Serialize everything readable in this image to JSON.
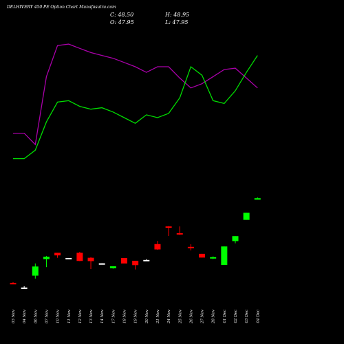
{
  "header": {
    "title": "DELHIVERY 450 PE Option Chart Munafasutra.com",
    "close": "C: 48.50",
    "high": "H: 48.95",
    "open": "O: 47.95",
    "low": "L: 47.95"
  },
  "colors": {
    "background": "#000000",
    "bullish": "#00ff00",
    "bearish": "#ff0000",
    "neutral": "#ffffff",
    "upper_line": "#00dd00",
    "lower_line": "#aa00aa",
    "text": "#ffffff"
  },
  "chart_data": {
    "type": "candlestick",
    "title": "DELHIVERY 450 PE Option Chart Munafasutra.com",
    "categories": [
      "03 Nov",
      "04 Nov",
      "06 Nov",
      "07 Nov",
      "10 Nov",
      "11 Nov",
      "12 Nov",
      "13 Nov",
      "14 Nov",
      "17 Nov",
      "18 Nov",
      "19 Nov",
      "20 Nov",
      "21 Nov",
      "24 Nov",
      "25 Nov",
      "26 Nov",
      "27 Nov",
      "28 Nov",
      "01 Dec",
      "02 Dec",
      "03 Dec",
      "04 Dec"
    ],
    "ylim": [
      0,
      60
    ],
    "candles": [
      {
        "date": "03 Nov",
        "open": 5.8,
        "high": 6.2,
        "low": 5.4,
        "close": 5.4
      },
      {
        "date": "04 Nov",
        "open": 3.5,
        "high": 4.2,
        "low": 2.9,
        "close": 3.3
      },
      {
        "date": "06 Nov",
        "open": 9.5,
        "high": 15.6,
        "low": 8.0,
        "close": 14.1
      },
      {
        "date": "07 Nov",
        "open": 17.8,
        "high": 19.4,
        "low": 13.8,
        "close": 19.0
      },
      {
        "date": "10 Nov",
        "open": 21.0,
        "high": 21.0,
        "low": 18.5,
        "close": 19.7
      },
      {
        "date": "11 Nov",
        "open": 18.4,
        "high": 18.4,
        "low": 18.0,
        "close": 18.2
      },
      {
        "date": "12 Nov",
        "open": 21.0,
        "high": 21.5,
        "low": 16.8,
        "close": 16.9
      },
      {
        "date": "13 Nov",
        "open": 18.5,
        "high": 18.8,
        "low": 12.8,
        "close": 16.8
      },
      {
        "date": "14 Nov",
        "open": 15.7,
        "high": 15.7,
        "low": 15.4,
        "close": 15.5
      },
      {
        "date": "17 Nov",
        "open": 13.2,
        "high": 14.2,
        "low": 13.0,
        "close": 14.2
      },
      {
        "date": "18 Nov",
        "open": 18.4,
        "high": 18.4,
        "low": 15.6,
        "close": 15.6
      },
      {
        "date": "19 Nov",
        "open": 17.0,
        "high": 17.0,
        "low": 12.6,
        "close": 14.8
      },
      {
        "date": "20 Nov",
        "open": 17.4,
        "high": 17.8,
        "low": 17.2,
        "close": 17.3
      },
      {
        "date": "21 Nov",
        "open": 25.4,
        "high": 27.0,
        "low": 22.5,
        "close": 22.7
      },
      {
        "date": "24 Nov",
        "open": 34.3,
        "high": 34.5,
        "low": 29.5,
        "close": 33.8
      },
      {
        "date": "25 Nov",
        "open": 30.9,
        "high": 34.3,
        "low": 30.0,
        "close": 30.3
      },
      {
        "date": "26 Nov",
        "open": 24.0,
        "high": 25.3,
        "low": 22.2,
        "close": 23.6
      },
      {
        "date": "27 Nov",
        "open": 20.5,
        "high": 20.5,
        "low": 18.6,
        "close": 18.6
      },
      {
        "date": "28 Nov",
        "open": 18.1,
        "high": 19.2,
        "low": 17.8,
        "close": 18.8
      },
      {
        "date": "01 Dec",
        "open": 14.9,
        "high": 24.2,
        "low": 14.9,
        "close": 24.2
      },
      {
        "date": "02 Dec",
        "open": 26.9,
        "high": 29.4,
        "low": 25.8,
        "close": 29.4
      },
      {
        "date": "03 Dec",
        "open": 37.6,
        "high": 41.2,
        "low": 37.6,
        "close": 41.2
      },
      {
        "date": "04 Dec",
        "open": 47.95,
        "high": 48.95,
        "low": 47.95,
        "close": 48.5
      }
    ],
    "series": [
      {
        "values": [
          150,
          150,
          142,
          190,
          212,
          213,
          210,
          207,
          205,
          203,
          200,
          197,
          193,
          197,
          197,
          189,
          182,
          185,
          190,
          195,
          196,
          189,
          182
        ]
      },
      {
        "values": [
          132,
          132,
          138,
          158,
          172,
          173,
          169,
          167,
          168,
          165,
          161,
          157,
          163,
          161,
          164,
          175,
          197,
          191,
          173,
          171,
          180,
          193,
          205
        ]
      }
    ]
  }
}
